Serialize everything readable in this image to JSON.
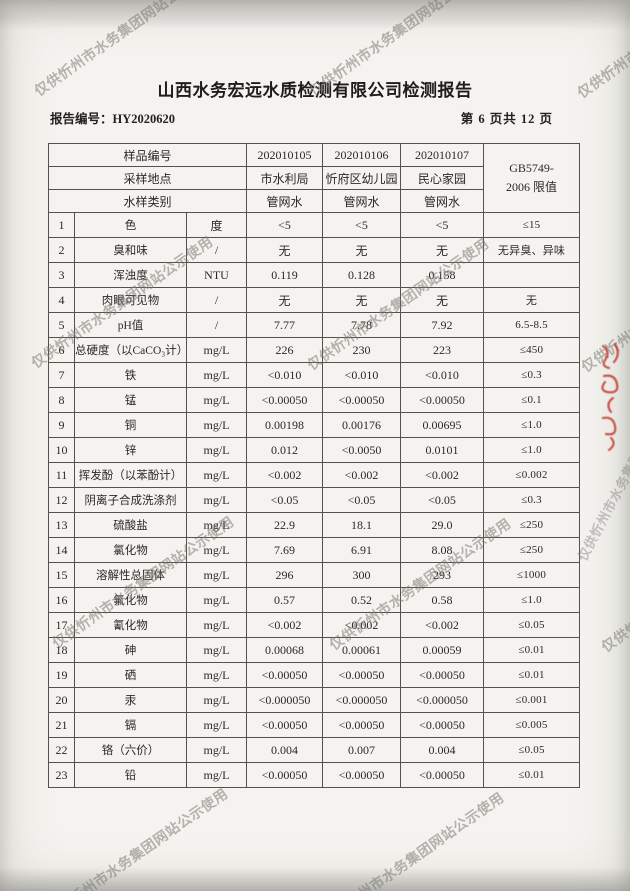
{
  "watermark": {
    "text": "仅供忻州市水务集团网站公示使用"
  },
  "title": "山西水务宏远水质检测有限公司检测报告",
  "meta": {
    "report_no_label": "报告编号：",
    "report_no": "HY2020620",
    "page_info": "第 6 页共 12 页"
  },
  "table": {
    "header": {
      "sample_id_label": "样品编号",
      "sample_ids": [
        "202010105",
        "202010106",
        "202010107"
      ],
      "location_label": "采样地点",
      "locations": [
        "市水利局",
        "忻府区幼儿园",
        "民心家园"
      ],
      "type_label": "水样类别",
      "types": [
        "管网水",
        "管网水",
        "管网水"
      ],
      "limit_header_line1": "GB5749-",
      "limit_header_line2": "2006 限值"
    },
    "rows": [
      {
        "no": "1",
        "name": "色",
        "unit": "度",
        "values": [
          "<5",
          "<5",
          "<5"
        ],
        "limit": "≤15"
      },
      {
        "no": "2",
        "name": "臭和味",
        "unit": "/",
        "values": [
          "无",
          "无",
          "无"
        ],
        "limit": "无异臭、异味"
      },
      {
        "no": "3",
        "name": "浑浊度",
        "unit": "NTU",
        "values": [
          "0.119",
          "0.128",
          "0.158"
        ],
        "limit": ""
      },
      {
        "no": "4",
        "name": "肉眼可见物",
        "unit": "/",
        "values": [
          "无",
          "无",
          "无"
        ],
        "limit": "无"
      },
      {
        "no": "5",
        "name": "pH值",
        "unit": "/",
        "values": [
          "7.77",
          "7.78",
          "7.92"
        ],
        "limit": "6.5-8.5"
      },
      {
        "no": "6",
        "name": "总硬度（以CaCO₃计）",
        "unit": "mg/L",
        "values": [
          "226",
          "230",
          "223"
        ],
        "limit": "≤450"
      },
      {
        "no": "7",
        "name": "铁",
        "unit": "mg/L",
        "values": [
          "<0.010",
          "<0.010",
          "<0.010"
        ],
        "limit": "≤0.3"
      },
      {
        "no": "8",
        "name": "锰",
        "unit": "mg/L",
        "values": [
          "<0.00050",
          "<0.00050",
          "<0.00050"
        ],
        "limit": "≤0.1"
      },
      {
        "no": "9",
        "name": "铜",
        "unit": "mg/L",
        "values": [
          "0.00198",
          "0.00176",
          "0.00695"
        ],
        "limit": "≤1.0"
      },
      {
        "no": "10",
        "name": "锌",
        "unit": "mg/L",
        "values": [
          "0.012",
          "<0.0050",
          "0.0101"
        ],
        "limit": "≤1.0"
      },
      {
        "no": "11",
        "name": "挥发酚（以苯酚计）",
        "unit": "mg/L",
        "values": [
          "<0.002",
          "<0.002",
          "<0.002"
        ],
        "limit": "≤0.002"
      },
      {
        "no": "12",
        "name": "阴离子合成洗涤剂",
        "unit": "mg/L",
        "values": [
          "<0.05",
          "<0.05",
          "<0.05"
        ],
        "limit": "≤0.3"
      },
      {
        "no": "13",
        "name": "硫酸盐",
        "unit": "mg/L",
        "values": [
          "22.9",
          "18.1",
          "29.0"
        ],
        "limit": "≤250"
      },
      {
        "no": "14",
        "name": "氯化物",
        "unit": "mg/L",
        "values": [
          "7.69",
          "6.91",
          "8.08"
        ],
        "limit": "≤250"
      },
      {
        "no": "15",
        "name": "溶解性总固体",
        "unit": "mg/L",
        "values": [
          "296",
          "300",
          "293"
        ],
        "limit": "≤1000"
      },
      {
        "no": "16",
        "name": "氟化物",
        "unit": "mg/L",
        "values": [
          "0.57",
          "0.52",
          "0.58"
        ],
        "limit": "≤1.0"
      },
      {
        "no": "17",
        "name": "氰化物",
        "unit": "mg/L",
        "values": [
          "<0.002",
          "<0.002",
          "<0.002"
        ],
        "limit": "≤0.05"
      },
      {
        "no": "18",
        "name": "砷",
        "unit": "mg/L",
        "values": [
          "0.00068",
          "0.00061",
          "0.00059"
        ],
        "limit": "≤0.01"
      },
      {
        "no": "19",
        "name": "硒",
        "unit": "mg/L",
        "values": [
          "<0.00050",
          "<0.00050",
          "<0.00050"
        ],
        "limit": "≤0.01"
      },
      {
        "no": "20",
        "name": "汞",
        "unit": "mg/L",
        "values": [
          "<0.000050",
          "<0.000050",
          "<0.000050"
        ],
        "limit": "≤0.001"
      },
      {
        "no": "21",
        "name": "镉",
        "unit": "mg/L",
        "values": [
          "<0.00050",
          "<0.00050",
          "<0.00050"
        ],
        "limit": "≤0.005"
      },
      {
        "no": "22",
        "name": "铬（六价）",
        "unit": "mg/L",
        "values": [
          "0.004",
          "0.007",
          "0.004"
        ],
        "limit": "≤0.05"
      },
      {
        "no": "23",
        "name": "铅",
        "unit": "mg/L",
        "values": [
          "<0.00050",
          "<0.00050",
          "<0.00050"
        ],
        "limit": "≤0.01"
      }
    ]
  },
  "seal": {
    "color": "#c23a2c"
  }
}
